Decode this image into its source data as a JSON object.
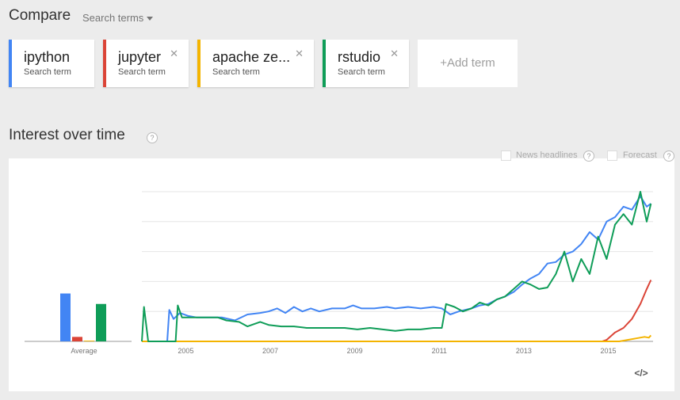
{
  "header": {
    "title": "Compare",
    "dropdown_label": "Search terms"
  },
  "terms": [
    {
      "term": "ipython",
      "subtitle": "Search term",
      "color": "#4285f4",
      "closable": false
    },
    {
      "term": "jupyter",
      "subtitle": "Search term",
      "color": "#db4437",
      "closable": true
    },
    {
      "term": "apache ze...",
      "subtitle": "Search term",
      "color": "#f4b400",
      "closable": true
    },
    {
      "term": "rstudio",
      "subtitle": "Search term",
      "color": "#0f9d58",
      "closable": true
    }
  ],
  "add_term_label": "+Add term",
  "interest": {
    "title": "Interest over time",
    "help": "?",
    "options": [
      {
        "label": "News headlines",
        "checked": false
      },
      {
        "label": "Forecast",
        "checked": false
      }
    ],
    "embed_icon": "</>"
  },
  "chart_data": {
    "type": "line",
    "x_ticks": [
      "2005",
      "2007",
      "2009",
      "2011",
      "2013",
      "2015"
    ],
    "x_range": [
      2004.0,
      2016.1
    ],
    "ylim": [
      0,
      100
    ],
    "averages": {
      "label": "Average",
      "values": [
        {
          "name": "ipython",
          "value": 32,
          "color": "#4285f4"
        },
        {
          "name": "jupyter",
          "value": 3,
          "color": "#db4437"
        },
        {
          "name": "apache ze...",
          "value": 0.5,
          "color": "#f4b400"
        },
        {
          "name": "rstudio",
          "value": 25,
          "color": "#0f9d58"
        }
      ]
    },
    "series": [
      {
        "name": "ipython",
        "color": "#4285f4",
        "points": [
          [
            2004.0,
            0
          ],
          [
            2004.6,
            0
          ],
          [
            2004.65,
            21
          ],
          [
            2004.75,
            15
          ],
          [
            2004.9,
            19
          ],
          [
            2005.1,
            17
          ],
          [
            2005.3,
            16
          ],
          [
            2005.6,
            16
          ],
          [
            2005.9,
            16
          ],
          [
            2006.2,
            14
          ],
          [
            2006.5,
            18
          ],
          [
            2006.8,
            19
          ],
          [
            2007.0,
            20
          ],
          [
            2007.2,
            22
          ],
          [
            2007.4,
            19
          ],
          [
            2007.6,
            23
          ],
          [
            2007.8,
            20
          ],
          [
            2008.0,
            22
          ],
          [
            2008.2,
            20
          ],
          [
            2008.5,
            22
          ],
          [
            2008.8,
            22
          ],
          [
            2009.0,
            24
          ],
          [
            2009.2,
            22
          ],
          [
            2009.5,
            22
          ],
          [
            2009.8,
            23
          ],
          [
            2010.0,
            22
          ],
          [
            2010.3,
            23
          ],
          [
            2010.6,
            22
          ],
          [
            2010.9,
            23
          ],
          [
            2011.1,
            22
          ],
          [
            2011.3,
            18
          ],
          [
            2011.5,
            20
          ],
          [
            2011.8,
            22
          ],
          [
            2012.0,
            24
          ],
          [
            2012.2,
            25
          ],
          [
            2012.4,
            28
          ],
          [
            2012.6,
            30
          ],
          [
            2012.8,
            33
          ],
          [
            2013.0,
            38
          ],
          [
            2013.2,
            42
          ],
          [
            2013.4,
            45
          ],
          [
            2013.6,
            52
          ],
          [
            2013.8,
            53
          ],
          [
            2014.0,
            58
          ],
          [
            2014.2,
            60
          ],
          [
            2014.4,
            65
          ],
          [
            2014.6,
            73
          ],
          [
            2014.8,
            68
          ],
          [
            2015.0,
            80
          ],
          [
            2015.2,
            83
          ],
          [
            2015.4,
            90
          ],
          [
            2015.6,
            88
          ],
          [
            2015.8,
            97
          ],
          [
            2015.95,
            90
          ],
          [
            2016.05,
            92
          ]
        ]
      },
      {
        "name": "jupyter",
        "color": "#db4437",
        "points": [
          [
            2004.0,
            0
          ],
          [
            2014.9,
            0
          ],
          [
            2015.0,
            1
          ],
          [
            2015.2,
            6
          ],
          [
            2015.4,
            9
          ],
          [
            2015.6,
            15
          ],
          [
            2015.8,
            25
          ],
          [
            2015.95,
            35
          ],
          [
            2016.05,
            41
          ]
        ]
      },
      {
        "name": "apache ze...",
        "color": "#f4b400",
        "points": [
          [
            2004.0,
            0
          ],
          [
            2015.3,
            0
          ],
          [
            2015.5,
            1
          ],
          [
            2015.7,
            2
          ],
          [
            2015.9,
            3
          ],
          [
            2016.0,
            2.5
          ],
          [
            2016.05,
            4
          ]
        ]
      },
      {
        "name": "rstudio",
        "color": "#0f9d58",
        "points": [
          [
            2004.0,
            0
          ],
          [
            2004.05,
            23
          ],
          [
            2004.15,
            0
          ],
          [
            2004.8,
            0
          ],
          [
            2004.85,
            24
          ],
          [
            2004.95,
            16
          ],
          [
            2005.2,
            16
          ],
          [
            2005.5,
            16
          ],
          [
            2005.8,
            16
          ],
          [
            2006.0,
            14
          ],
          [
            2006.3,
            13
          ],
          [
            2006.5,
            10
          ],
          [
            2006.8,
            13
          ],
          [
            2007.0,
            11
          ],
          [
            2007.3,
            10
          ],
          [
            2007.6,
            10
          ],
          [
            2007.9,
            9
          ],
          [
            2008.2,
            9
          ],
          [
            2008.5,
            9
          ],
          [
            2008.8,
            9
          ],
          [
            2009.1,
            8
          ],
          [
            2009.4,
            9
          ],
          [
            2009.7,
            8
          ],
          [
            2010.0,
            7
          ],
          [
            2010.3,
            8
          ],
          [
            2010.6,
            8
          ],
          [
            2010.9,
            9
          ],
          [
            2011.1,
            9
          ],
          [
            2011.2,
            25
          ],
          [
            2011.4,
            23
          ],
          [
            2011.6,
            20
          ],
          [
            2011.8,
            22
          ],
          [
            2012.0,
            26
          ],
          [
            2012.2,
            24
          ],
          [
            2012.4,
            28
          ],
          [
            2012.6,
            30
          ],
          [
            2012.8,
            35
          ],
          [
            2013.0,
            40
          ],
          [
            2013.2,
            38
          ],
          [
            2013.4,
            35
          ],
          [
            2013.6,
            36
          ],
          [
            2013.8,
            45
          ],
          [
            2014.0,
            60
          ],
          [
            2014.2,
            40
          ],
          [
            2014.4,
            55
          ],
          [
            2014.6,
            45
          ],
          [
            2014.8,
            70
          ],
          [
            2015.0,
            55
          ],
          [
            2015.2,
            78
          ],
          [
            2015.4,
            85
          ],
          [
            2015.6,
            78
          ],
          [
            2015.8,
            100
          ],
          [
            2015.95,
            80
          ],
          [
            2016.05,
            92
          ]
        ]
      }
    ]
  }
}
